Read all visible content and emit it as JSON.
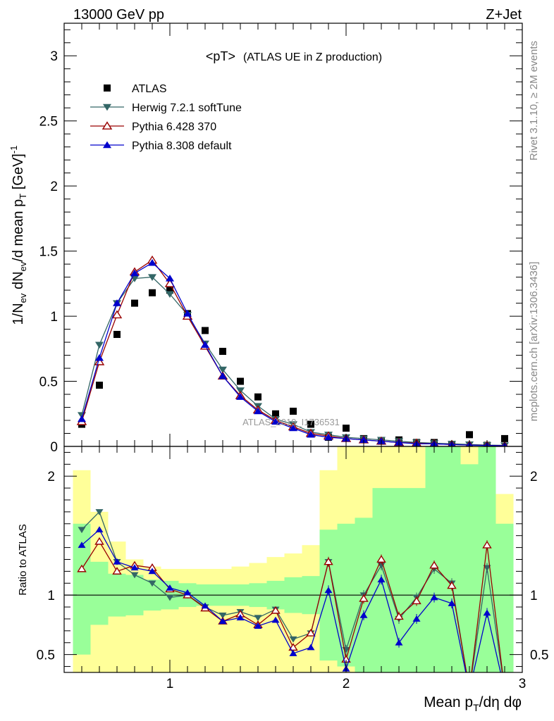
{
  "header": {
    "energy_label": "13000 GeV pp",
    "process_label": "Z+Jet"
  },
  "side_text": {
    "rivet": "Rivet 3.1.10, ≥ 2M events",
    "mcplots": "mcplots.cern.ch [arXiv:1306.3436]"
  },
  "chart_data": {
    "type": "scatter",
    "title": "<pT>",
    "title_suffix": "(ATLAS UE in Z production)",
    "watermark": "ATLAS_2019_I1736531",
    "xlabel": "Mean p_T/dη dφ",
    "xlabel_parts": {
      "a": "Mean p",
      "sub": "T",
      "b": "/dη dφ"
    },
    "xlim": [
      0.4,
      3.0
    ],
    "x_ticks": [
      "1",
      "2",
      "3"
    ],
    "top_panel": {
      "ylabel": "1/N_ev dN_ev/d mean p_T [GeV]^-1",
      "ylabel_parts": {
        "p1": "1/N",
        "s1": "ev",
        "p2": " dN",
        "s2": "ev",
        "p3": "/d mean p",
        "s3": "T",
        "p4": " [GeV]",
        "sup": "-1"
      },
      "ylim": [
        0,
        3.25
      ],
      "y_ticks": [
        "0",
        "0.5",
        "1",
        "1.5",
        "2",
        "2.5",
        "3"
      ],
      "legend_position": "top-left",
      "x": [
        0.5,
        0.6,
        0.7,
        0.8,
        0.9,
        1.0,
        1.1,
        1.2,
        1.3,
        1.4,
        1.5,
        1.6,
        1.7,
        1.8,
        1.9,
        2.0,
        2.1,
        2.2,
        2.3,
        2.4,
        2.5,
        2.6,
        2.7,
        2.8,
        2.9
      ],
      "series": [
        {
          "name": "ATLAS",
          "color": "#000000",
          "marker": "square",
          "values": [
            0.17,
            0.47,
            0.86,
            1.1,
            1.18,
            1.2,
            1.02,
            0.89,
            0.73,
            0.5,
            0.38,
            0.25,
            0.27,
            0.17,
            0.07,
            0.14,
            0.06,
            0.04,
            0.05,
            0.03,
            0.03,
            0.015,
            0.09,
            0.008,
            0.06
          ]
        },
        {
          "name": "Herwig 7.2.1 softTune",
          "color": "#336666",
          "marker": "triangle-down",
          "values": [
            0.24,
            0.78,
            1.1,
            1.29,
            1.3,
            1.17,
            1.01,
            0.79,
            0.59,
            0.43,
            0.31,
            0.21,
            0.17,
            0.11,
            0.09,
            0.07,
            0.06,
            0.05,
            0.04,
            0.03,
            0.025,
            0.02,
            0.015,
            0.01,
            0.008
          ]
        },
        {
          "name": "Pythia 6.428 370",
          "color": "#990000",
          "marker": "triangle-up-open",
          "values": [
            0.19,
            0.65,
            1.01,
            1.34,
            1.43,
            1.25,
            1.0,
            0.77,
            0.54,
            0.39,
            0.28,
            0.2,
            0.15,
            0.1,
            0.08,
            0.06,
            0.05,
            0.04,
            0.03,
            0.025,
            0.02,
            0.015,
            0.01,
            0.008,
            0.005
          ]
        },
        {
          "name": "Pythia 8.308 default",
          "color": "#0000cc",
          "marker": "triangle-up",
          "values": [
            0.21,
            0.68,
            1.1,
            1.33,
            1.41,
            1.29,
            1.02,
            0.78,
            0.54,
            0.38,
            0.27,
            0.19,
            0.14,
            0.09,
            0.07,
            0.06,
            0.05,
            0.04,
            0.03,
            0.02,
            0.02,
            0.015,
            0.01,
            0.007,
            0.005
          ]
        }
      ]
    },
    "ratio_panel": {
      "ylabel": "Ratio to ATLAS",
      "ylim": [
        0.35,
        2.25
      ],
      "y_ticks": [
        "0.5",
        "1",
        "2"
      ],
      "band_inner": [
        0.5,
        0.75,
        0.82,
        0.83,
        0.87,
        0.88,
        0.9,
        0.91,
        0.91,
        0.91,
        0.9,
        0.88,
        0.85,
        0.84,
        0.45,
        0.4,
        0.35,
        0.35,
        0.35,
        0.35,
        0.35,
        0.35,
        0.35,
        0.35,
        0.35
      ],
      "band_inner_hi": [
        1.6,
        1.28,
        1.18,
        1.17,
        1.13,
        1.12,
        1.1,
        1.09,
        1.09,
        1.09,
        1.1,
        1.12,
        1.15,
        1.16,
        1.55,
        1.6,
        1.65,
        1.9,
        1.9,
        1.9,
        2.25,
        2.25,
        2.1,
        2.25,
        1.6
      ],
      "band_outer": [
        0.35,
        0.35,
        0.35,
        0.35,
        0.35,
        0.35,
        0.35,
        0.35,
        0.35,
        0.35,
        0.35,
        0.35,
        0.35,
        0.35,
        0.35,
        0.35,
        0.35,
        0.35,
        0.35,
        0.35,
        0.35,
        0.35,
        0.35,
        0.35,
        0.35
      ],
      "band_outer_hi": [
        2.05,
        1.7,
        1.45,
        1.3,
        1.24,
        1.22,
        1.22,
        1.22,
        1.22,
        1.24,
        1.27,
        1.32,
        1.35,
        1.42,
        2.05,
        2.25,
        2.25,
        2.25,
        2.25,
        2.25,
        2.25,
        2.25,
        2.25,
        2.25,
        1.85
      ],
      "series": [
        {
          "name": "Herwig 7.2.1 softTune",
          "values": [
            1.55,
            1.7,
            1.28,
            1.17,
            1.1,
            0.98,
            1.0,
            0.9,
            0.83,
            0.86,
            0.81,
            0.88,
            0.63,
            0.68,
            1.28,
            0.54,
            1.0,
            1.25,
            0.8,
            0.98,
            1.22,
            1.1,
            0.2,
            1.23,
            0.2
          ]
        },
        {
          "name": "Pythia 6.428 370",
          "values": [
            1.22,
            1.45,
            1.2,
            1.25,
            1.23,
            1.05,
            1.0,
            0.89,
            0.78,
            0.84,
            0.75,
            0.87,
            0.56,
            0.68,
            1.28,
            0.46,
            0.97,
            1.3,
            0.82,
            0.95,
            1.25,
            1.08,
            0.2,
            1.42,
            0.2
          ]
        },
        {
          "name": "Pythia 8.308 default",
          "values": [
            1.42,
            1.55,
            1.28,
            1.23,
            1.2,
            1.06,
            1.02,
            0.91,
            0.78,
            0.81,
            0.74,
            0.79,
            0.51,
            0.56,
            1.04,
            0.38,
            0.83,
            1.13,
            0.6,
            0.8,
            0.98,
            0.93,
            0.2,
            0.85,
            0.2
          ]
        }
      ],
      "reference_line": 1
    }
  }
}
